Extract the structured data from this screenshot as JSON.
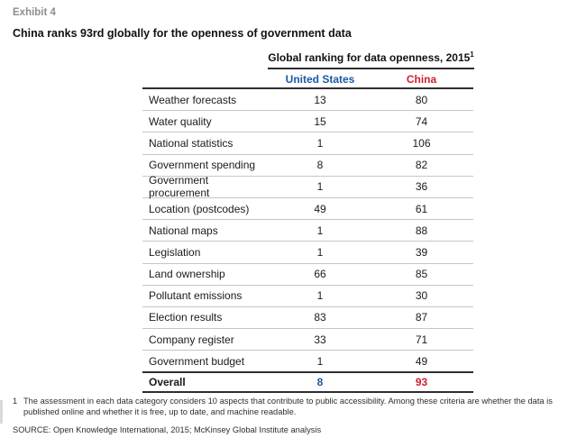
{
  "exhibit_label": "Exhibit 4",
  "title": "China ranks 93rd globally for the openness of government data",
  "colors": {
    "us_blue": "#1d59a5",
    "china_red": "#d02030",
    "exhibit_gray": "#8e8e8e"
  },
  "table": {
    "group_header": "Global ranking for data openness, 2015",
    "group_header_footnote_marker": "1",
    "columns": {
      "us": "United States",
      "china": "China"
    },
    "rows": [
      {
        "label": "Weather forecasts",
        "us": "13",
        "china": "80"
      },
      {
        "label": "Water quality",
        "us": "15",
        "china": "74"
      },
      {
        "label": "National statistics",
        "us": "1",
        "china": "106"
      },
      {
        "label": "Government spending",
        "us": "8",
        "china": "82"
      },
      {
        "label": "Government procurement",
        "us": "1",
        "china": "36"
      },
      {
        "label": "Location (postcodes)",
        "us": "49",
        "china": "61"
      },
      {
        "label": "National maps",
        "us": "1",
        "china": "88"
      },
      {
        "label": "Legislation",
        "us": "1",
        "china": "39"
      },
      {
        "label": "Land ownership",
        "us": "66",
        "china": "85"
      },
      {
        "label": "Pollutant emissions",
        "us": "1",
        "china": "30"
      },
      {
        "label": "Election results",
        "us": "83",
        "china": "87"
      },
      {
        "label": "Company register",
        "us": "33",
        "china": "71"
      },
      {
        "label": "Government budget",
        "us": "1",
        "china": "49"
      }
    ],
    "overall": {
      "label": "Overall",
      "us": "8",
      "china": "93"
    }
  },
  "footnote": {
    "marker": "1",
    "text": "The assessment in each data category considers 10 aspects that contribute to public accessibility. Among these criteria are whether the data is published online and whether it is free, up to date, and machine readable."
  },
  "source": "SOURCE: Open Knowledge International, 2015; McKinsey Global Institute analysis",
  "chart_data": {
    "type": "table",
    "title": "Global ranking for data openness, 2015",
    "subtitle": "China ranks 93rd globally for the openness of government data",
    "categories": [
      "Weather forecasts",
      "Water quality",
      "National statistics",
      "Government spending",
      "Government procurement",
      "Location (postcodes)",
      "National maps",
      "Legislation",
      "Land ownership",
      "Pollutant emissions",
      "Election results",
      "Company register",
      "Government budget",
      "Overall"
    ],
    "series": [
      {
        "name": "United States",
        "values": [
          13,
          15,
          1,
          8,
          1,
          49,
          1,
          1,
          66,
          1,
          83,
          33,
          1,
          8
        ]
      },
      {
        "name": "China",
        "values": [
          80,
          74,
          106,
          82,
          36,
          61,
          88,
          39,
          85,
          30,
          87,
          71,
          49,
          93
        ]
      }
    ]
  }
}
